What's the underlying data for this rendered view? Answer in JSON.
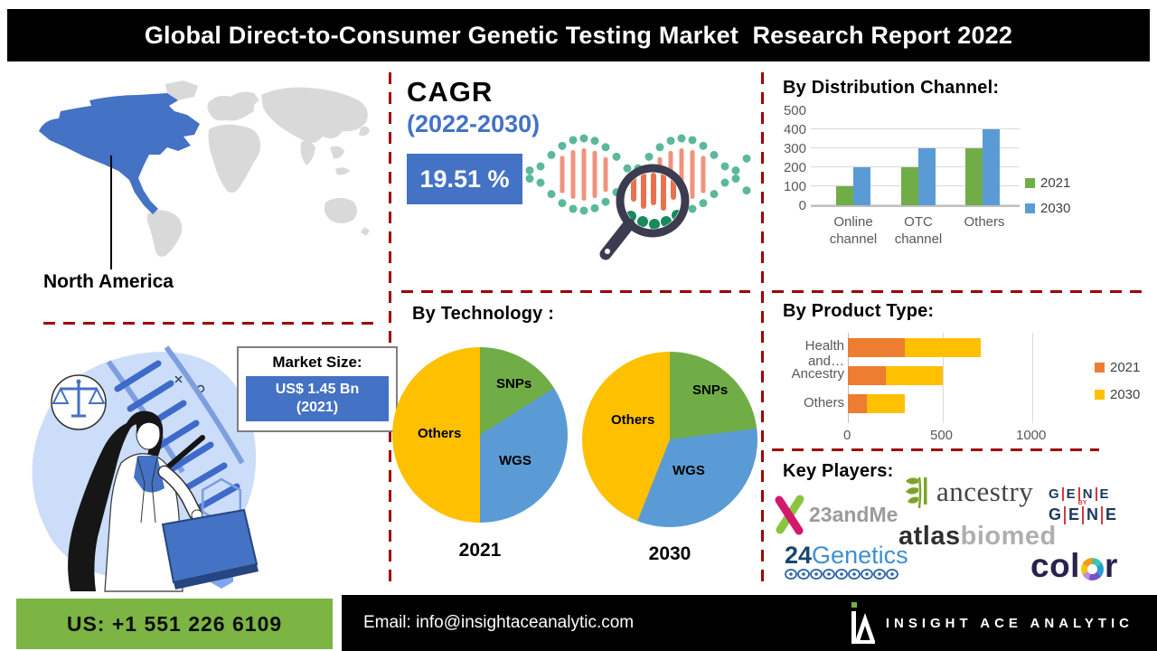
{
  "title": "Global Direct-to-Consumer Genetic Testing Market  Research Report 2022",
  "region": {
    "label": "North America"
  },
  "cagr": {
    "title": "CAGR",
    "period": "(2022-2030)",
    "value": "19.51 %"
  },
  "market_size": {
    "label": "Market Size:",
    "value": "US$ 1.45 Bn",
    "year": "(2021)"
  },
  "sections": {
    "technology": "By Technology :"
  },
  "chart_data": [
    {
      "id": "distribution-channel",
      "type": "bar",
      "title": "By Distribution Channel:",
      "categories": [
        "Online channel",
        "OTC channel",
        "Others"
      ],
      "series": [
        {
          "name": "2021",
          "color": "#70AD47",
          "values": [
            100,
            200,
            300
          ]
        },
        {
          "name": "2030",
          "color": "#5B9BD5",
          "values": [
            200,
            300,
            400
          ]
        }
      ],
      "ylim": [
        0,
        500
      ],
      "yticks": [
        0,
        100,
        200,
        300,
        400,
        500
      ],
      "grid": true,
      "legend_position": "right"
    },
    {
      "id": "technology-2021",
      "type": "pie",
      "title": "2021",
      "labels": [
        "SNPs",
        "WGS",
        "Others"
      ],
      "values": [
        16,
        34,
        50
      ],
      "colors": [
        "#70AD47",
        "#5B9BD5",
        "#FFC000"
      ],
      "unit": "percent-estimated"
    },
    {
      "id": "technology-2030",
      "type": "pie",
      "title": "2030",
      "labels": [
        "SNPs",
        "WGS",
        "Others"
      ],
      "values": [
        23,
        33,
        44
      ],
      "colors": [
        "#70AD47",
        "#5B9BD5",
        "#FFC000"
      ],
      "unit": "percent-estimated"
    },
    {
      "id": "product-type",
      "type": "stacked-bar-h",
      "title": "By Product Type:",
      "categories": [
        "Health and…",
        "Ancestry",
        "Others"
      ],
      "series": [
        {
          "name": "2021",
          "color": "#ED7D31",
          "values": [
            300,
            200,
            100
          ]
        },
        {
          "name": "2030",
          "color": "#FFC000",
          "values": [
            400,
            300,
            200
          ]
        }
      ],
      "xlim": [
        0,
        1500
      ],
      "xticks": [
        0,
        500,
        1000
      ],
      "grid": true,
      "legend_position": "right"
    }
  ],
  "key_players": {
    "heading": "Key Players:",
    "names": [
      "23andMe",
      "ancestry",
      "GENE BY GENE",
      "atlasbiomed",
      "24Genetics",
      "color"
    ],
    "t23andme": {
      "text": "23andMe"
    },
    "ancestry": {
      "text": "ancestry"
    },
    "genebygene": {
      "letters": [
        "G",
        "E",
        "N",
        "E"
      ],
      "by": "BY"
    },
    "atlasbiomed": {
      "dark": "atlas",
      "light": "biomed"
    },
    "g24": {
      "num": "24",
      "text": "Genetics"
    },
    "color_logo": {
      "pre": "col",
      "o": "o",
      "post": "r"
    }
  },
  "footer": {
    "phone": "US: +1 551 226 6109",
    "email": "Email: info@insightaceanalytic.com",
    "brand": "INSIGHT ACE ANALYTIC"
  },
  "colors": {
    "accent_blue": "#4472C4",
    "dash_red": "#A00000",
    "series_2021_green": "#70AD47",
    "series_2030_blue": "#5B9BD5",
    "pie_yellow": "#FFC000",
    "product_orange": "#ED7D31",
    "footer_green": "#7CB543",
    "map_gray": "#D9D9D9"
  }
}
